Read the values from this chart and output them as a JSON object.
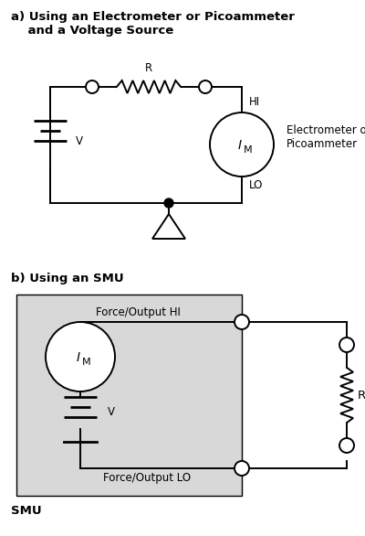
{
  "title_a": "a) Using an Electrometer or Picoammeter\n    and a Voltage Source",
  "title_b": "b) Using an SMU",
  "label_smu": "SMU",
  "label_R_a": "R",
  "label_R_b": "R",
  "label_V_a": "V",
  "label_V_b": "V",
  "label_HI": "HI",
  "label_LO": "LO",
  "label_IM": "I",
  "label_IM_sub": "M",
  "label_electrometer": "Electrometer or\nPicoammeter",
  "label_force_hi": "Force/Output HI",
  "label_force_lo": "Force/Output LO",
  "bg_color": "#ffffff",
  "smu_box_color": "#d8d8d8",
  "line_color": "#000000",
  "font_size_title": 9.5,
  "font_size_label": 8.5,
  "font_size_small": 7.5
}
